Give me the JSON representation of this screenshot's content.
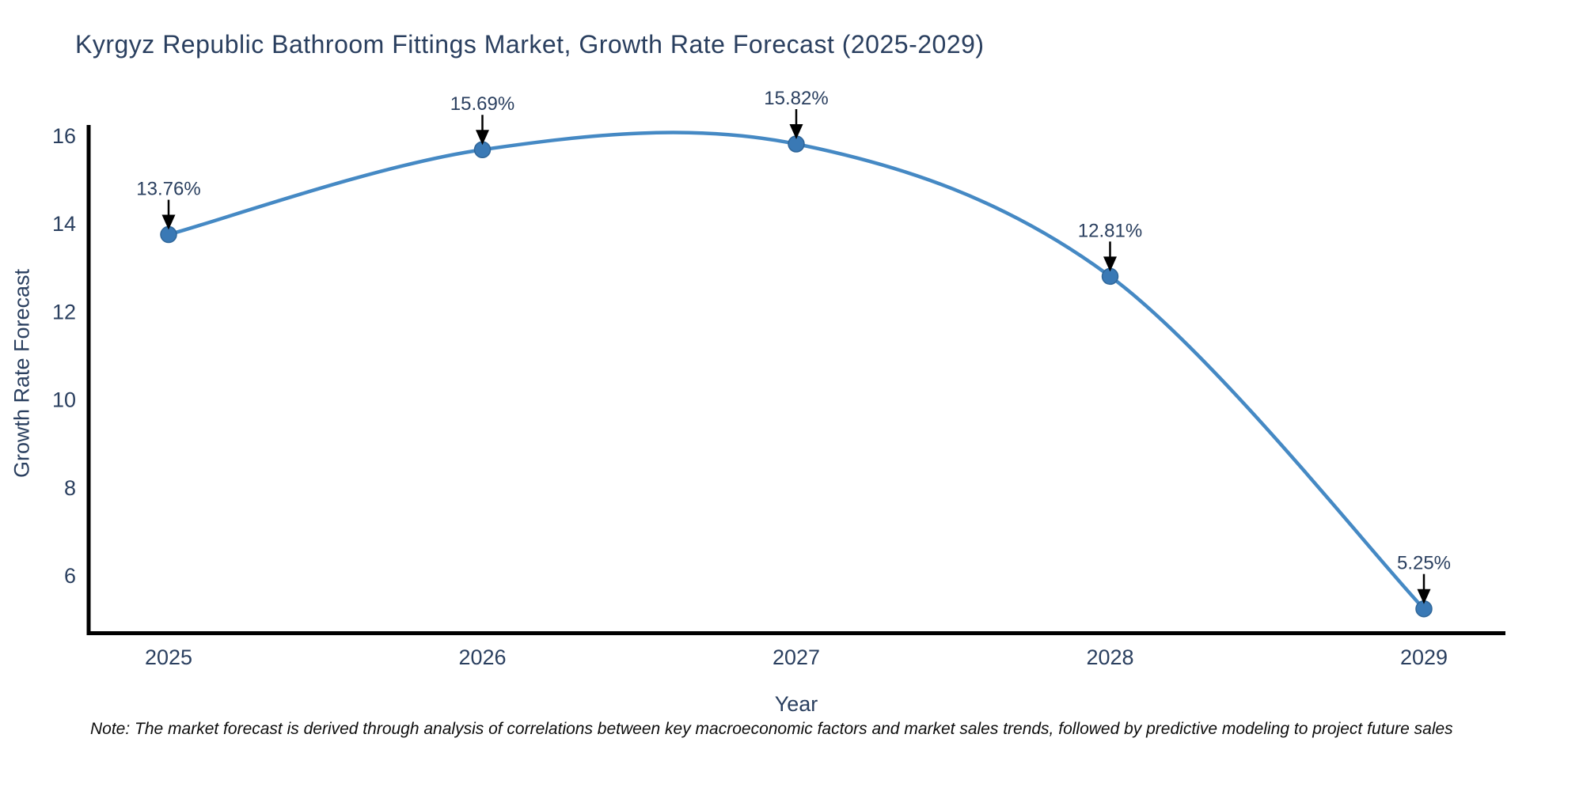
{
  "chart": {
    "title": "Kyrgyz Republic Bathroom Fittings Market, Growth Rate Forecast (2025-2029)",
    "xlabel": "Year",
    "ylabel": "Growth Rate Forecast",
    "note": "Note: The market forecast is derived through analysis of correlations between key macroeconomic factors and market sales trends, followed by predictive modeling to project future sales"
  },
  "chart_data": {
    "type": "line",
    "line_shape": "spline",
    "title": "Kyrgyz Republic Bathroom Fittings Market, Growth Rate Forecast (2025-2029)",
    "xlabel": "Year",
    "ylabel": "Growth Rate Forecast",
    "x": [
      2025,
      2026,
      2027,
      2028,
      2029
    ],
    "values": [
      13.76,
      15.69,
      15.82,
      12.81,
      5.25
    ],
    "point_labels": [
      "13.76%",
      "15.69%",
      "15.82%",
      "12.81%",
      "5.25%"
    ],
    "yticks": [
      6,
      8,
      10,
      12,
      14,
      16
    ],
    "ylim": [
      4.7,
      16.2
    ],
    "xlim": [
      2024.74,
      2029.26
    ],
    "grid": false,
    "legend": false,
    "colors": {
      "line": "#4589c4",
      "marker": "#3a79b5",
      "marker_edge": "#2f6699",
      "axis": "#000000",
      "text": "#2a3f5f",
      "annotation_arrow": "#000000",
      "background": "#ffffff"
    }
  }
}
